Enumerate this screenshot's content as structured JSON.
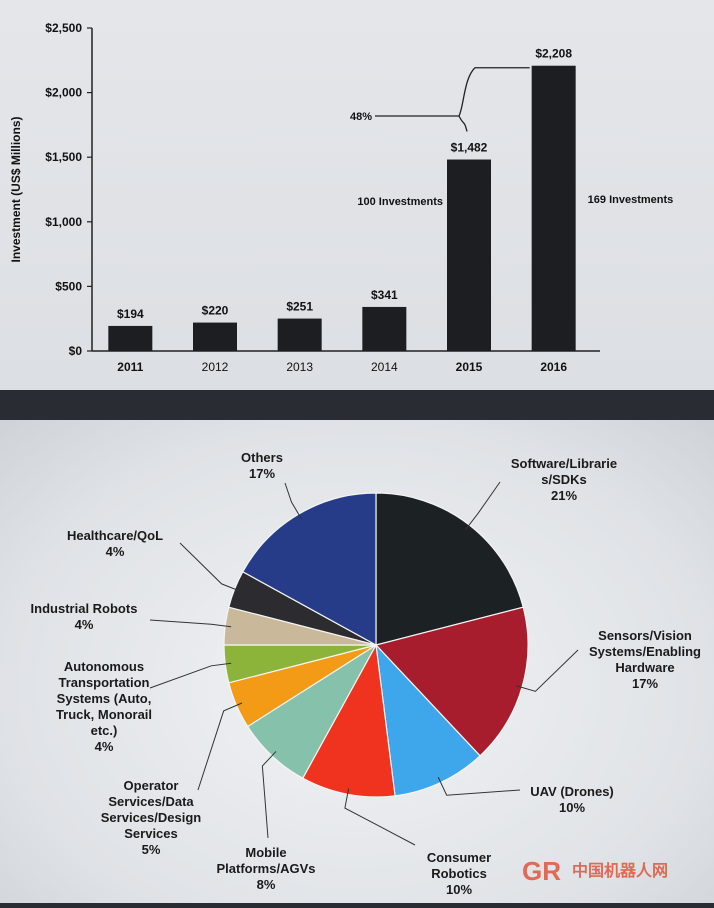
{
  "chart_data": [
    {
      "type": "bar",
      "ylabel": "Investment (US$ Millions)",
      "categories": [
        "2011",
        "2012",
        "2013",
        "2014",
        "2015",
        "2016"
      ],
      "values": [
        194,
        220,
        251,
        341,
        1482,
        2208
      ],
      "data_labels": [
        "$194",
        "$220",
        "$251",
        "$341",
        "$1,482",
        "$2,208"
      ],
      "ylim": [
        0,
        2500
      ],
      "yticks": [
        "$0",
        "$500",
        "$1,000",
        "$1,500",
        "$2,000",
        "$2,500"
      ],
      "annotations": {
        "growth": "48%",
        "investments_2015": "100 Investments",
        "investments_2016": "169 Investments"
      },
      "bar_color": "#1d1e22",
      "grid": false
    },
    {
      "type": "pie",
      "slices": [
        {
          "label": [
            "Software/Librarie",
            "s/SDKs"
          ],
          "pct_text": "21%",
          "value": 21,
          "color": "#1c2124"
        },
        {
          "label": [
            "Sensors/Vision",
            "Systems/Enabling",
            "Hardware"
          ],
          "pct_text": "17%",
          "value": 17,
          "color": "#a81d2d"
        },
        {
          "label": [
            "UAV (Drones)"
          ],
          "pct_text": "10%",
          "value": 10,
          "color": "#3ea6ea"
        },
        {
          "label": [
            "Consumer",
            "Robotics"
          ],
          "pct_text": "10%",
          "value": 10,
          "color": "#f0331e"
        },
        {
          "label": [
            "Mobile",
            "Platforms/AGVs"
          ],
          "pct_text": "8%",
          "value": 8,
          "color": "#86c1ab"
        },
        {
          "label": [
            "Operator",
            "Services/Data",
            "Services/Design",
            "Services"
          ],
          "pct_text": "5%",
          "value": 5,
          "color": "#f39a16"
        },
        {
          "label": [
            "Autonomous",
            "Transportation",
            "Systems (Auto,",
            "Truck, Monorail",
            "etc.)"
          ],
          "pct_text": "4%",
          "value": 4,
          "color": "#8cb43a"
        },
        {
          "label": [
            "Industrial Robots"
          ],
          "pct_text": "4%",
          "value": 4,
          "color": "#c9b99a"
        },
        {
          "label": [
            "Healthcare/QoL"
          ],
          "pct_text": "4%",
          "value": 4,
          "color": "#2c2c30"
        },
        {
          "label": [
            "Others"
          ],
          "pct_text": "17%",
          "value": 17,
          "color": "#263c88"
        }
      ],
      "start": "12 o'clock",
      "direction": "clockwise"
    }
  ],
  "watermark": {
    "logo_letters": "GR",
    "text": "中国机器人网"
  }
}
